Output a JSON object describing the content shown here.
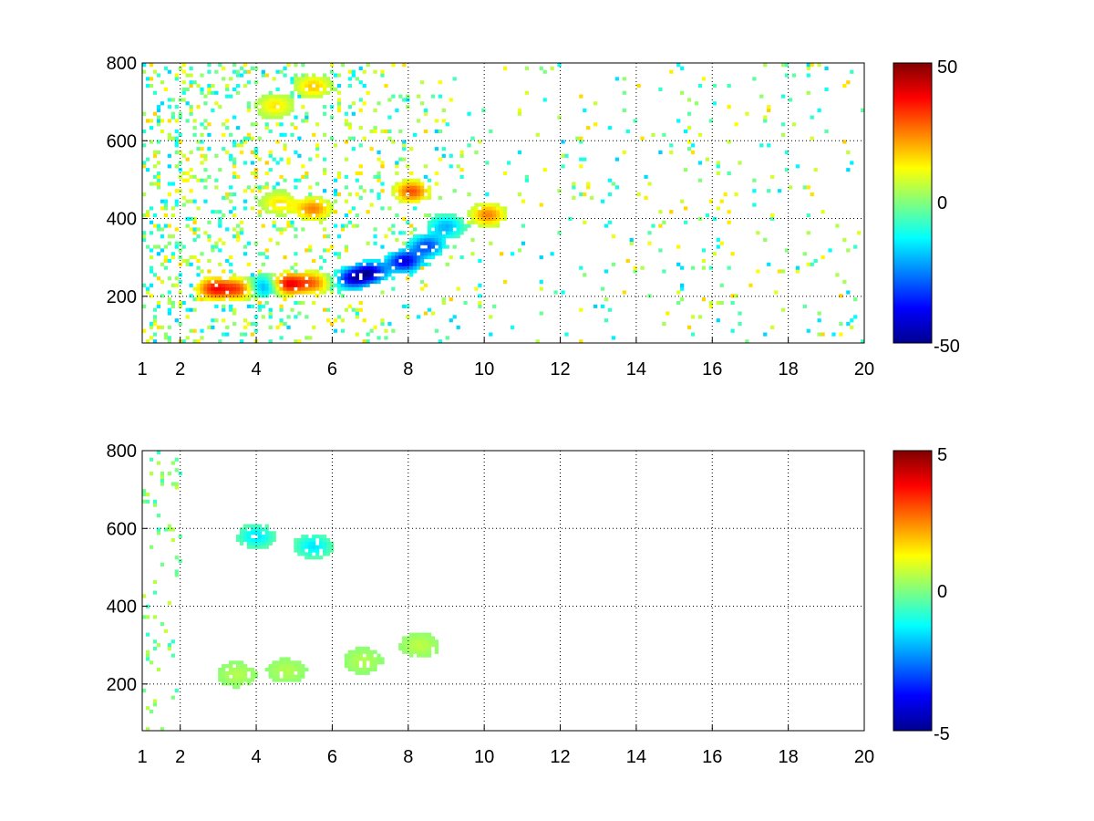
{
  "chart_data": [
    {
      "type": "heatmap",
      "title": "",
      "xlabel": "",
      "ylabel": "",
      "xlim": [
        1,
        20
      ],
      "ylim": [
        80,
        800
      ],
      "grid": true,
      "x_ticks": [
        "1",
        "2",
        "4",
        "6",
        "8",
        "10",
        "12",
        "14",
        "16",
        "18",
        "20"
      ],
      "y_ticks": [
        "200",
        "400",
        "600",
        "800"
      ],
      "colorbar": {
        "range": [
          -50,
          50
        ],
        "ticks": [
          "50",
          "0",
          "-50"
        ],
        "colormap": "jet"
      },
      "features": [
        {
          "x": 2.9,
          "y": 220,
          "value": 35
        },
        {
          "x": 3.6,
          "y": 220,
          "value": 30
        },
        {
          "x": 4.2,
          "y": 225,
          "value": -30
        },
        {
          "x": 4.8,
          "y": 232,
          "value": 40
        },
        {
          "x": 5.5,
          "y": 235,
          "value": 25
        },
        {
          "x": 6.5,
          "y": 245,
          "value": -35
        },
        {
          "x": 7.0,
          "y": 262,
          "value": -40
        },
        {
          "x": 7.9,
          "y": 290,
          "value": -40
        },
        {
          "x": 8.5,
          "y": 330,
          "value": -30
        },
        {
          "x": 9.0,
          "y": 380,
          "value": -20
        },
        {
          "x": 8.1,
          "y": 470,
          "value": 30
        },
        {
          "x": 10.1,
          "y": 410,
          "value": 25
        },
        {
          "x": 4.6,
          "y": 440,
          "value": 15
        },
        {
          "x": 5.5,
          "y": 425,
          "value": 25
        },
        {
          "x": 4.5,
          "y": 690,
          "value": 15
        },
        {
          "x": 5.5,
          "y": 740,
          "value": 18
        }
      ]
    },
    {
      "type": "heatmap",
      "title": "",
      "xlabel": "",
      "ylabel": "",
      "xlim": [
        1,
        20
      ],
      "ylim": [
        80,
        800
      ],
      "grid": true,
      "x_ticks": [
        "1",
        "2",
        "4",
        "6",
        "8",
        "10",
        "12",
        "14",
        "16",
        "18",
        "20"
      ],
      "y_ticks": [
        "200",
        "400",
        "600",
        "800"
      ],
      "colorbar": {
        "range": [
          -5,
          5
        ],
        "ticks": [
          "5",
          "0",
          "-5"
        ],
        "colormap": "jet"
      },
      "features": [
        {
          "x": 3.5,
          "y": 225,
          "value": 0.5
        },
        {
          "x": 4.8,
          "y": 235,
          "value": 0.5
        },
        {
          "x": 6.8,
          "y": 260,
          "value": 0.5
        },
        {
          "x": 8.3,
          "y": 300,
          "value": 0.6
        },
        {
          "x": 5.5,
          "y": 555,
          "value": -1.5
        },
        {
          "x": 4.0,
          "y": 580,
          "value": -1.5
        }
      ]
    }
  ]
}
